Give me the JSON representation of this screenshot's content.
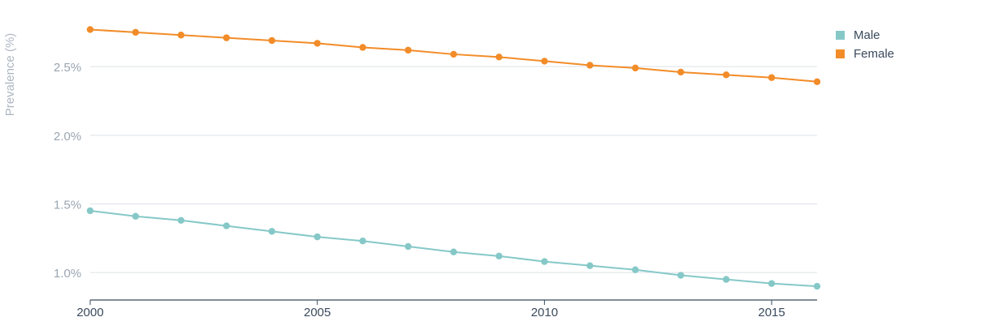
{
  "chart_data": {
    "type": "line",
    "ylabel": "Prevalence (%)",
    "x": [
      2000,
      2001,
      2002,
      2003,
      2004,
      2005,
      2006,
      2007,
      2008,
      2009,
      2010,
      2011,
      2012,
      2013,
      2014,
      2015,
      2016
    ],
    "x_ticks": [
      2000,
      2005,
      2010,
      2015
    ],
    "x_tick_labels": [
      "2000",
      "2005",
      "2010",
      "2015"
    ],
    "xlim": [
      2000,
      2016
    ],
    "y_ticks": [
      1.0,
      1.5,
      2.0,
      2.5
    ],
    "y_tick_labels": [
      "1.0%",
      "1.5%",
      "2.0%",
      "2.5%"
    ],
    "ylim": [
      0.8,
      2.82
    ],
    "grid": "horizontal",
    "legend_position": "top-right",
    "series": [
      {
        "name": "Male",
        "color": "#86c8c8",
        "values": [
          1.45,
          1.41,
          1.38,
          1.34,
          1.3,
          1.26,
          1.23,
          1.19,
          1.15,
          1.12,
          1.08,
          1.05,
          1.02,
          0.98,
          0.95,
          0.92,
          0.9
        ]
      },
      {
        "name": "Female",
        "color": "#f28c28",
        "values": [
          2.77,
          2.75,
          2.73,
          2.71,
          2.69,
          2.67,
          2.64,
          2.62,
          2.59,
          2.57,
          2.54,
          2.51,
          2.49,
          2.46,
          2.44,
          2.42,
          2.39
        ]
      }
    ]
  },
  "colors": {
    "grid": "#dde2e8",
    "axis": "#3a4a5c",
    "tick_text": "#9aa5b1",
    "x_tick_text": "#3a4a5c",
    "legend_text": "#3a4a5c"
  }
}
